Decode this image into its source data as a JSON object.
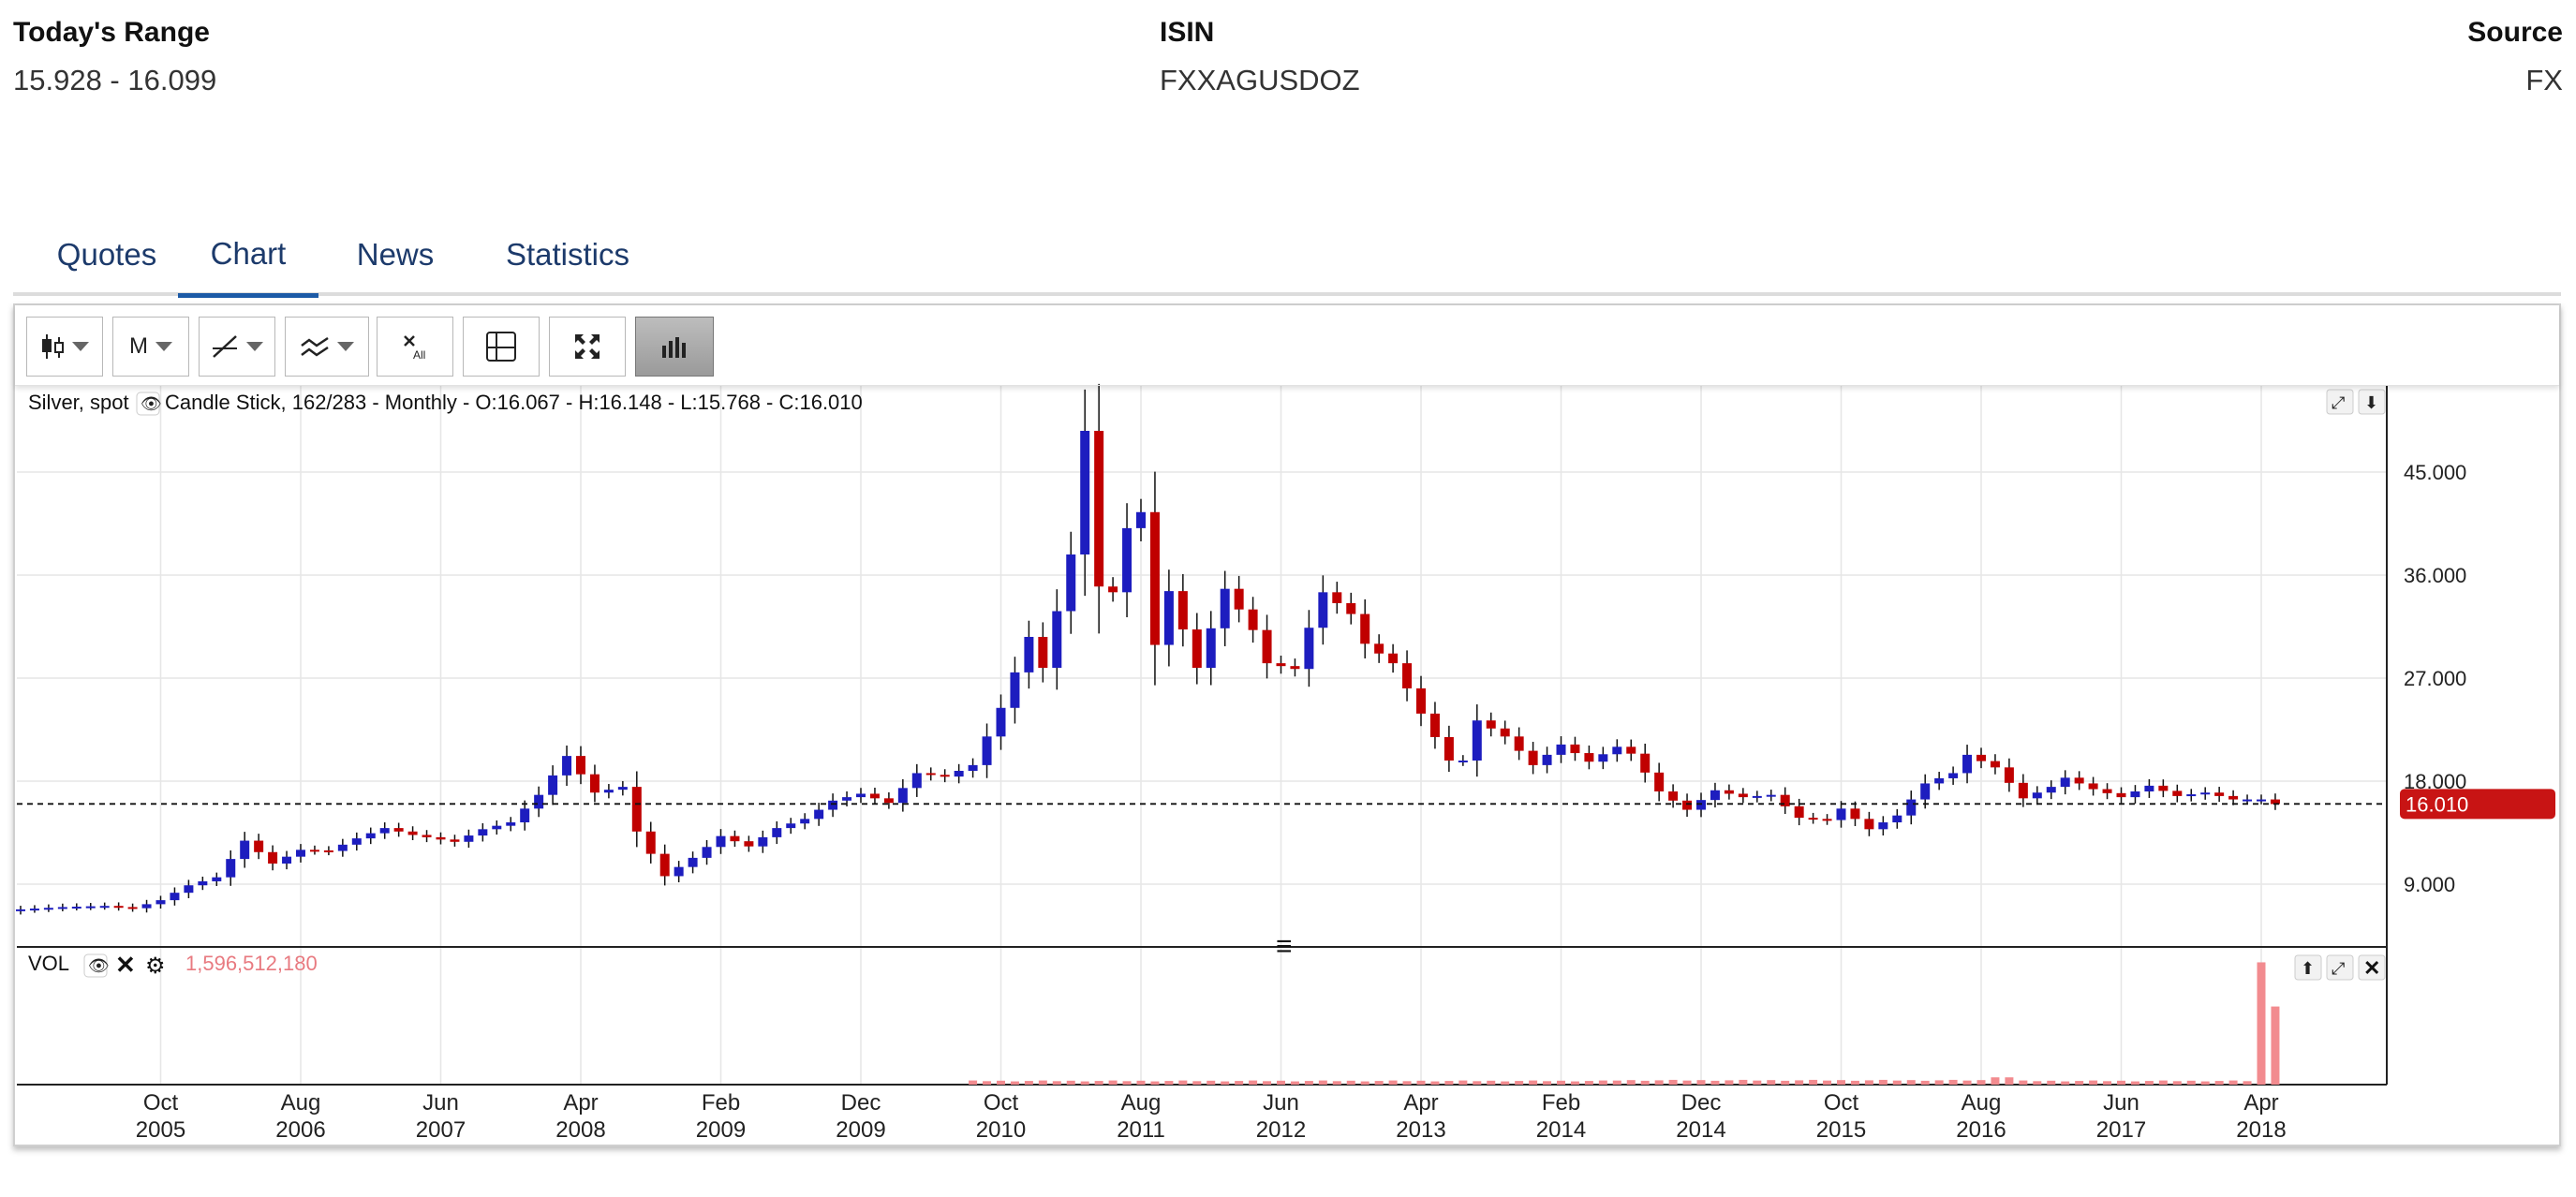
{
  "header": {
    "range_label": "Today's Range",
    "range_value": "15.928 - 16.099",
    "isin_label": "ISIN",
    "isin_value": "FXXAGUSDOZ",
    "source_label": "Source",
    "source_value": "FX"
  },
  "tabs": [
    {
      "label": "Quotes",
      "active": false
    },
    {
      "label": "Chart",
      "active": true
    },
    {
      "label": "News",
      "active": false
    },
    {
      "label": "Statistics",
      "active": false
    }
  ],
  "toolbar": {
    "buttons": [
      {
        "icon": "candlestick-type-icon",
        "label": ""
      },
      {
        "icon": "",
        "label": "M"
      },
      {
        "icon": "draw-line-icon",
        "label": ""
      },
      {
        "icon": "indicators-icon",
        "label": ""
      },
      {
        "icon": "clear-all-icon",
        "label": ""
      },
      {
        "icon": "crosshair-icon",
        "label": ""
      },
      {
        "icon": "fullscreen-icon",
        "label": ""
      },
      {
        "icon": "volume-toggle-icon",
        "label": ""
      }
    ]
  },
  "legend": {
    "series_name": "Silver, spot",
    "description": "Candle Stick, 162/283 - Monthly - O:16.067 - H:16.148 - L:15.768 - C:16.010"
  },
  "volume_panel": {
    "label": "VOL",
    "value": "1,596,512,180"
  },
  "colors": {
    "up": "#1d1dbf",
    "down": "#c00000",
    "last_price_bg": "#c81414",
    "volume_bar": "#f28b8f",
    "tab_text": "#1c3a6b",
    "tab_underline": "#1c5aa6"
  },
  "chart_data": {
    "type": "candlestick",
    "title": "Silver, spot",
    "interval": "Monthly",
    "ylim": [
      4,
      51
    ],
    "y_ticks": [
      "45.000",
      "36.000",
      "27.000",
      "18.000",
      "9.000"
    ],
    "last_price": 16.01,
    "last_price_label": "16.010",
    "x_ticks": [
      {
        "month": "Oct",
        "year": "2005"
      },
      {
        "month": "Aug",
        "year": "2006"
      },
      {
        "month": "Jun",
        "year": "2007"
      },
      {
        "month": "Apr",
        "year": "2008"
      },
      {
        "month": "Feb",
        "year": "2009"
      },
      {
        "month": "Dec",
        "year": "2009"
      },
      {
        "month": "Oct",
        "year": "2010"
      },
      {
        "month": "Aug",
        "year": "2011"
      },
      {
        "month": "Jun",
        "year": "2012"
      },
      {
        "month": "Apr",
        "year": "2013"
      },
      {
        "month": "Feb",
        "year": "2014"
      },
      {
        "month": "Dec",
        "year": "2014"
      },
      {
        "month": "Oct",
        "year": "2015"
      },
      {
        "month": "Aug",
        "year": "2016"
      },
      {
        "month": "Jun",
        "year": "2017"
      },
      {
        "month": "Apr",
        "year": "2018"
      }
    ],
    "first_period": "2004-12",
    "close_anchors": [
      [
        "2004-12",
        6.8
      ],
      [
        "2005-03",
        7.0
      ],
      [
        "2005-06",
        7.1
      ],
      [
        "2005-08",
        6.9
      ],
      [
        "2005-10",
        7.6
      ],
      [
        "2005-12",
        8.9
      ],
      [
        "2006-02",
        9.6
      ],
      [
        "2006-04",
        12.8
      ],
      [
        "2006-06",
        10.8
      ],
      [
        "2006-08",
        12.0
      ],
      [
        "2006-10",
        11.9
      ],
      [
        "2006-12",
        13.0
      ],
      [
        "2007-02",
        13.9
      ],
      [
        "2007-04",
        13.3
      ],
      [
        "2007-07",
        12.7
      ],
      [
        "2007-09",
        13.8
      ],
      [
        "2007-11",
        14.4
      ],
      [
        "2008-01",
        16.8
      ],
      [
        "2008-03",
        20.2
      ],
      [
        "2008-05",
        17.0
      ],
      [
        "2008-07",
        17.5
      ],
      [
        "2008-08",
        13.6
      ],
      [
        "2008-10",
        9.7
      ],
      [
        "2008-12",
        11.3
      ],
      [
        "2009-02",
        13.2
      ],
      [
        "2009-04",
        12.3
      ],
      [
        "2009-06",
        13.9
      ],
      [
        "2009-08",
        14.7
      ],
      [
        "2009-10",
        16.3
      ],
      [
        "2009-12",
        16.9
      ],
      [
        "2010-02",
        16.1
      ],
      [
        "2010-04",
        18.7
      ],
      [
        "2010-06",
        18.4
      ],
      [
        "2010-08",
        19.4
      ],
      [
        "2010-10",
        24.4
      ],
      [
        "2010-12",
        30.6
      ],
      [
        "2011-01",
        27.9
      ],
      [
        "2011-03",
        37.8
      ],
      [
        "2011-04",
        48.6
      ],
      [
        "2011-05",
        35.0
      ],
      [
        "2011-06",
        34.5
      ],
      [
        "2011-07",
        40.1
      ],
      [
        "2011-08",
        41.5
      ],
      [
        "2011-09",
        29.9
      ],
      [
        "2011-10",
        34.6
      ],
      [
        "2011-12",
        27.9
      ],
      [
        "2012-02",
        34.8
      ],
      [
        "2012-04",
        31.2
      ],
      [
        "2012-05",
        28.3
      ],
      [
        "2012-07",
        27.8
      ],
      [
        "2012-08",
        31.4
      ],
      [
        "2012-09",
        34.5
      ],
      [
        "2012-11",
        32.6
      ],
      [
        "2012-12",
        30.0
      ],
      [
        "2013-02",
        28.3
      ],
      [
        "2013-04",
        23.9
      ],
      [
        "2013-06",
        19.8
      ],
      [
        "2013-07",
        19.8
      ],
      [
        "2013-08",
        23.3
      ],
      [
        "2013-10",
        21.9
      ],
      [
        "2013-12",
        19.4
      ],
      [
        "2014-02",
        21.2
      ],
      [
        "2014-04",
        19.7
      ],
      [
        "2014-06",
        21.0
      ],
      [
        "2014-07",
        20.4
      ],
      [
        "2014-09",
        17.1
      ],
      [
        "2014-11",
        15.5
      ],
      [
        "2015-01",
        17.2
      ],
      [
        "2015-03",
        16.6
      ],
      [
        "2015-05",
        16.8
      ],
      [
        "2015-07",
        14.8
      ],
      [
        "2015-09",
        14.6
      ],
      [
        "2015-10",
        15.6
      ],
      [
        "2015-12",
        13.8
      ],
      [
        "2016-02",
        15.0
      ],
      [
        "2016-04",
        17.8
      ],
      [
        "2016-06",
        18.7
      ],
      [
        "2016-07",
        20.3
      ],
      [
        "2016-09",
        19.2
      ],
      [
        "2016-11",
        16.5
      ],
      [
        "2017-01",
        17.5
      ],
      [
        "2017-02",
        18.3
      ],
      [
        "2017-04",
        17.3
      ],
      [
        "2017-06",
        16.6
      ],
      [
        "2017-08",
        17.6
      ],
      [
        "2017-10",
        16.7
      ],
      [
        "2017-12",
        17.0
      ],
      [
        "2018-02",
        16.4
      ],
      [
        "2018-04",
        16.4
      ],
      [
        "2018-05",
        16.0
      ]
    ],
    "volume": {
      "start_period": "2010-08",
      "base_level": 42000000,
      "bump_level": 95000000,
      "bump_periods": [
        "2016-09",
        "2016-10"
      ],
      "spike_periods": [
        [
          "2018-04",
          1596512180
        ],
        [
          "2018-05",
          1020000000
        ]
      ],
      "ylim": [
        0,
        1700000000
      ]
    }
  }
}
